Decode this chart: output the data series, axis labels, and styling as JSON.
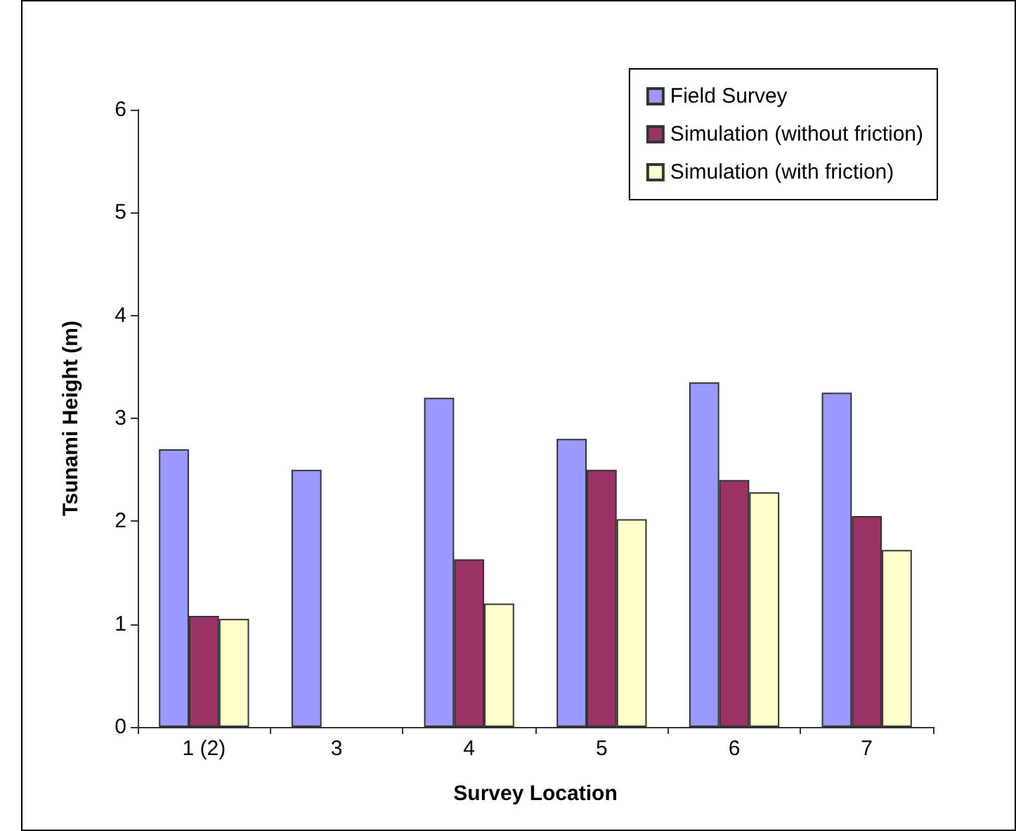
{
  "chart_data": {
    "type": "bar",
    "xlabel": "Survey Location",
    "ylabel": "Tsunami Height (m)",
    "categories": [
      "1 (2)",
      "3",
      "4",
      "5",
      "6",
      "7"
    ],
    "series": [
      {
        "name": "Field Survey",
        "color": "#9999ff",
        "values": [
          2.7,
          2.5,
          3.2,
          2.8,
          3.35,
          3.25
        ]
      },
      {
        "name": "Simulation (without friction)",
        "color": "#993366",
        "values": [
          1.08,
          null,
          1.63,
          2.5,
          2.4,
          2.05
        ]
      },
      {
        "name": "Simulation (with friction)",
        "color": "#ffffcc",
        "values": [
          1.05,
          null,
          1.2,
          2.02,
          2.28,
          1.72
        ]
      }
    ],
    "ylim": [
      0,
      6
    ],
    "yticks": [
      0,
      1,
      2,
      3,
      4,
      5,
      6
    ],
    "grid": false,
    "legend": "top right"
  }
}
